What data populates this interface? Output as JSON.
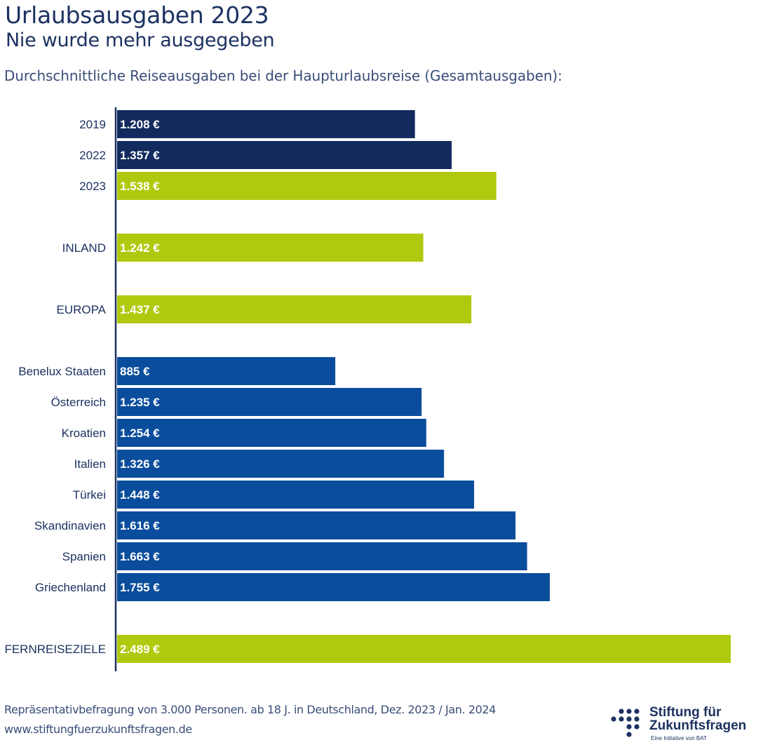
{
  "header": {
    "title": "Urlaubsausgaben 2023",
    "subtitle": "Nie wurde mehr ausgegeben",
    "description": "Durchschnittliche Reiseausgaben bei der Haupturlaubsreise (Gesamtausgaben):"
  },
  "colors": {
    "navy": "#122a5e",
    "blue": "#0a4d9c",
    "lime": "#b0c90f",
    "label": "#1c3261",
    "axis": "#1c3261",
    "value_text": "#ffffff"
  },
  "chart_data": {
    "type": "bar",
    "orientation": "horizontal",
    "title": "Urlaubsausgaben 2023",
    "subtitle": "Nie wurde mehr ausgegeben",
    "xlabel": "",
    "ylabel": "",
    "unit": "€",
    "xlim": [
      0,
      2489
    ],
    "grid": false,
    "legend": "none",
    "categories": [
      "2019",
      "2022",
      "2023",
      "INLAND",
      "EUROPA",
      "Benelux Staaten",
      "Österreich",
      "Kroatien",
      "Italien",
      "Türkei",
      "Skandinavien",
      "Spanien",
      "Griechenland",
      "FERNREISEZIELE"
    ],
    "values": [
      1208,
      1357,
      1538,
      1242,
      1437,
      885,
      1235,
      1254,
      1326,
      1448,
      1616,
      1663,
      1755,
      2489
    ],
    "value_labels": [
      "1.208 €",
      "1.357 €",
      "1.538 €",
      "1.242 €",
      "1.437 €",
      "885 €",
      "1.235 €",
      "1.254 €",
      "1.326 €",
      "1.448 €",
      "1.616 €",
      "1.663 €",
      "1.755 €",
      "2.489 €"
    ],
    "bar_color_keys": [
      "navy",
      "navy",
      "lime",
      "lime",
      "lime",
      "blue",
      "blue",
      "blue",
      "blue",
      "blue",
      "blue",
      "blue",
      "blue",
      "lime"
    ],
    "group_breaks_after": [
      "2023",
      "INLAND",
      "EUROPA",
      "Griechenland"
    ]
  },
  "footer": {
    "source": "Repräsentativbefragung von 3.000 Personen. ab 18 J. in Deutschland, Dez. 2023 / Jan. 2024",
    "url": "www.stiftungfuerzukunftsfragen.de"
  },
  "logo": {
    "line1": "Stiftung für",
    "line2": "Zukunftsfragen",
    "tagline": "Eine Initiative von BAT"
  }
}
